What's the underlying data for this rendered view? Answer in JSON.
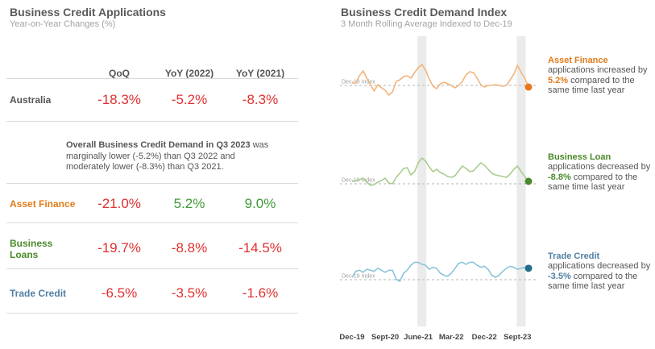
{
  "left": {
    "title": "Business Credit Applications",
    "subtitle": "Year-on-Year Changes (%)",
    "columns": [
      "QoQ",
      "YoY (2022)",
      "YoY (2021)"
    ],
    "rows": [
      {
        "label": "Australia",
        "color": "#555555",
        "values": [
          "-18.3%",
          "-5.2%",
          "-8.3%"
        ],
        "value_colors": [
          "#e03131",
          "#e03131",
          "#e03131"
        ]
      },
      {
        "label": "Asset Finance",
        "color": "#e07b1a",
        "values": [
          "-21.0%",
          "5.2%",
          "9.0%"
        ],
        "value_colors": [
          "#e03131",
          "#3d9b35",
          "#3d9b35"
        ]
      },
      {
        "label_line1": "Business",
        "label_line2": "Loans",
        "color": "#4a8a2a",
        "values": [
          "-19.7%",
          "-8.8%",
          "-14.5%"
        ],
        "value_colors": [
          "#e03131",
          "#e03131",
          "#e03131"
        ]
      },
      {
        "label": "Trade Credit",
        "color": "#4f7fa3",
        "values": [
          "-6.5%",
          "-3.5%",
          "-1.6%"
        ],
        "value_colors": [
          "#e03131",
          "#e03131",
          "#e03131"
        ]
      }
    ],
    "note": {
      "bold": "Overall Business Credit Demand in Q3 2023",
      "rest1": " was",
      "line2": "marginally lower (-5.2%) than Q3 2022 and",
      "line3": "moderately lower (-8.3%) than Q3 2021."
    }
  },
  "right": {
    "title": "Business Credit Demand Index",
    "subtitle": "3 Month Rolling Average Indexed to Dec-19"
  },
  "chart_data": {
    "type": "line",
    "title": "Business Credit Demand Index",
    "subtitle": "3 Month Rolling Average Indexed to Dec-19",
    "x_tick_labels": [
      "Dec-19",
      "Sept-20",
      "June-21",
      "Mar-22",
      "Dec-22",
      "Sept-23"
    ],
    "baseline_label": "Dec-19 Index",
    "shaded_periods": [
      [
        "June-21",
        "Aug-21"
      ],
      [
        "Aug-23",
        "Oct-23"
      ]
    ],
    "grid": false,
    "series": [
      {
        "name": "Asset Finance",
        "color": "#f2b47b",
        "marker_color": "#e8761c",
        "values": [
          100,
          100,
          118,
          130,
          112,
          96,
          80,
          96,
          88,
          82,
          70,
          78,
          104,
          108,
          116,
          118,
          112,
          126,
          138,
          146,
          132,
          110,
          92,
          86,
          98,
          102,
          98,
          94,
          88,
          94,
          104,
          120,
          128,
          126,
          112,
          96,
          90,
          94,
          94,
          96,
          94,
          92,
          94,
          108,
          122,
          144,
          126,
          112,
          90
        ],
        "description": {
          "before": "applications increased by ",
          "value": "5.2%",
          "after": " compared to the same time last year",
          "value_color": "#e07b1a"
        }
      },
      {
        "name": "Business Loan",
        "color": "#a8cc8f",
        "marker_color": "#4a8a2a",
        "values": [
          100,
          102,
          104,
          108,
          98,
          90,
          92,
          98,
          102,
          108,
          96,
          94,
          110,
          120,
          132,
          134,
          116,
          124,
          146,
          158,
          150,
          136,
          124,
          130,
          122,
          118,
          112,
          110,
          114,
          126,
          138,
          132,
          124,
          126,
          136,
          146,
          140,
          130,
          120,
          116,
          114,
          112,
          110,
          118,
          130,
          138,
          124,
          112,
          100
        ],
        "description": {
          "before": "applications decreased by ",
          "value": "-8.8%",
          "after": " compared to the same time last year",
          "value_color": "#4a8a2a"
        }
      },
      {
        "name": "Trade Credit",
        "color": "#8cc4d8",
        "marker_color": "#1f6e8c",
        "values": [
          100,
          112,
          114,
          110,
          116,
          114,
          112,
          118,
          114,
          110,
          114,
          114,
          96,
          92,
          108,
          114,
          124,
          130,
          130,
          126,
          124,
          116,
          120,
          118,
          108,
          104,
          102,
          108,
          118,
          128,
          130,
          126,
          130,
          130,
          124,
          120,
          122,
          116,
          104,
          100,
          104,
          112,
          118,
          122,
          120,
          116,
          118,
          120,
          118
        ],
        "description": {
          "before": "applications decreased by ",
          "value": "-3.5%",
          "after": " compared to the same time last year",
          "value_color": "#4f7fa3"
        }
      }
    ]
  }
}
